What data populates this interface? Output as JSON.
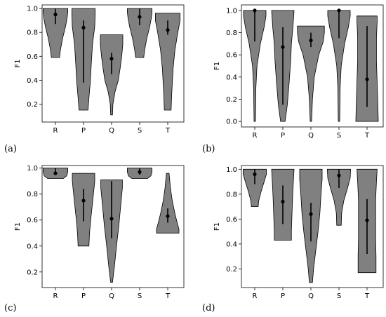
{
  "chart_data": [
    {
      "type": "violin",
      "panel_label": "(a)",
      "ylabel": "F1",
      "categories": [
        "R",
        "P",
        "Q",
        "S",
        "T"
      ],
      "ylim": [
        0.05,
        1.03
      ],
      "yticks": [
        0.2,
        0.4,
        0.6,
        0.8,
        1.0
      ],
      "ytick_labels": [
        "0.2",
        "0.4",
        "0.6",
        "0.8",
        "1.0"
      ],
      "violins": [
        {
          "min": 0.59,
          "max": 1.0,
          "median": 0.95,
          "q1": 0.87,
          "q3": 1.0,
          "profile": [
            [
              0.59,
              0.18
            ],
            [
              0.65,
              0.22
            ],
            [
              0.75,
              0.32
            ],
            [
              0.85,
              0.45
            ],
            [
              0.92,
              0.52
            ],
            [
              0.97,
              0.55
            ],
            [
              1.0,
              0.55
            ]
          ]
        },
        {
          "min": 0.15,
          "max": 1.0,
          "median": 0.84,
          "q1": 0.38,
          "q3": 0.9,
          "profile": [
            [
              0.15,
              0.2
            ],
            [
              0.25,
              0.24
            ],
            [
              0.38,
              0.3
            ],
            [
              0.55,
              0.35
            ],
            [
              0.7,
              0.4
            ],
            [
              0.85,
              0.5
            ],
            [
              0.95,
              0.52
            ],
            [
              1.0,
              0.52
            ]
          ]
        },
        {
          "min": 0.11,
          "max": 0.78,
          "median": 0.58,
          "q1": 0.45,
          "q3": 0.63,
          "profile": [
            [
              0.11,
              0.04
            ],
            [
              0.2,
              0.06
            ],
            [
              0.3,
              0.15
            ],
            [
              0.4,
              0.3
            ],
            [
              0.5,
              0.38
            ],
            [
              0.6,
              0.45
            ],
            [
              0.7,
              0.5
            ],
            [
              0.78,
              0.5
            ]
          ]
        },
        {
          "min": 0.59,
          "max": 1.0,
          "median": 0.93,
          "q1": 0.86,
          "q3": 1.0,
          "profile": [
            [
              0.59,
              0.18
            ],
            [
              0.65,
              0.22
            ],
            [
              0.75,
              0.32
            ],
            [
              0.85,
              0.45
            ],
            [
              0.92,
              0.52
            ],
            [
              0.97,
              0.55
            ],
            [
              1.0,
              0.55
            ]
          ]
        },
        {
          "min": 0.15,
          "max": 0.96,
          "median": 0.82,
          "q1": 0.78,
          "q3": 0.9,
          "profile": [
            [
              0.15,
              0.15
            ],
            [
              0.3,
              0.18
            ],
            [
              0.5,
              0.24
            ],
            [
              0.65,
              0.32
            ],
            [
              0.8,
              0.45
            ],
            [
              0.9,
              0.55
            ],
            [
              0.96,
              0.55
            ]
          ]
        }
      ]
    },
    {
      "type": "violin",
      "panel_label": "(b)",
      "ylabel": "F1",
      "categories": [
        "R",
        "P",
        "Q",
        "S",
        "T"
      ],
      "ylim": [
        -0.05,
        1.05
      ],
      "yticks": [
        0.0,
        0.2,
        0.4,
        0.6,
        0.8,
        1.0
      ],
      "ytick_labels": [
        "0.0",
        "0.2",
        "0.4",
        "0.6",
        "0.8",
        "1.0"
      ],
      "violins": [
        {
          "min": 0.0,
          "max": 1.0,
          "median": 1.0,
          "q1": 0.72,
          "q3": 1.0,
          "profile": [
            [
              0.0,
              0.03
            ],
            [
              0.3,
              0.05
            ],
            [
              0.5,
              0.1
            ],
            [
              0.7,
              0.25
            ],
            [
              0.85,
              0.42
            ],
            [
              0.95,
              0.5
            ],
            [
              1.0,
              0.5
            ]
          ]
        },
        {
          "min": 0.0,
          "max": 1.0,
          "median": 0.67,
          "q1": 0.15,
          "q3": 0.85,
          "profile": [
            [
              0.0,
              0.1
            ],
            [
              0.15,
              0.2
            ],
            [
              0.35,
              0.28
            ],
            [
              0.55,
              0.35
            ],
            [
              0.7,
              0.38
            ],
            [
              0.85,
              0.45
            ],
            [
              1.0,
              0.5
            ]
          ]
        },
        {
          "min": 0.0,
          "max": 0.86,
          "median": 0.73,
          "q1": 0.67,
          "q3": 0.8,
          "profile": [
            [
              0.0,
              0.03
            ],
            [
              0.2,
              0.07
            ],
            [
              0.4,
              0.15
            ],
            [
              0.6,
              0.35
            ],
            [
              0.72,
              0.55
            ],
            [
              0.8,
              0.6
            ],
            [
              0.86,
              0.6
            ]
          ]
        },
        {
          "min": 0.0,
          "max": 1.0,
          "median": 1.0,
          "q1": 0.75,
          "q3": 1.0,
          "profile": [
            [
              0.0,
              0.03
            ],
            [
              0.3,
              0.05
            ],
            [
              0.5,
              0.1
            ],
            [
              0.7,
              0.25
            ],
            [
              0.85,
              0.42
            ],
            [
              0.95,
              0.5
            ],
            [
              1.0,
              0.5
            ]
          ]
        },
        {
          "min": 0.0,
          "max": 0.95,
          "median": 0.38,
          "q1": 0.13,
          "q3": 0.86,
          "profile": [
            [
              0.0,
              0.5
            ],
            [
              0.15,
              0.48
            ],
            [
              0.35,
              0.45
            ],
            [
              0.55,
              0.42
            ],
            [
              0.75,
              0.42
            ],
            [
              0.9,
              0.45
            ],
            [
              0.95,
              0.45
            ]
          ]
        }
      ]
    },
    {
      "type": "violin",
      "panel_label": "(c)",
      "ylabel": "F1",
      "categories": [
        "R",
        "P",
        "Q",
        "S",
        "T"
      ],
      "ylim": [
        0.08,
        1.02
      ],
      "yticks": [
        0.2,
        0.4,
        0.6,
        0.8,
        1.0
      ],
      "ytick_labels": [
        "0.2",
        "0.4",
        "0.6",
        "0.8",
        "1.0"
      ],
      "violins": [
        {
          "min": 0.92,
          "max": 1.0,
          "median": 0.96,
          "q1": 0.95,
          "q3": 1.0,
          "profile": [
            [
              0.92,
              0.35
            ],
            [
              0.94,
              0.5
            ],
            [
              0.97,
              0.55
            ],
            [
              1.0,
              0.55
            ]
          ]
        },
        {
          "min": 0.4,
          "max": 0.96,
          "median": 0.75,
          "q1": 0.59,
          "q3": 0.84,
          "profile": [
            [
              0.4,
              0.24
            ],
            [
              0.5,
              0.27
            ],
            [
              0.6,
              0.32
            ],
            [
              0.7,
              0.38
            ],
            [
              0.8,
              0.44
            ],
            [
              0.9,
              0.5
            ],
            [
              0.96,
              0.5
            ]
          ]
        },
        {
          "min": 0.12,
          "max": 0.91,
          "median": 0.61,
          "q1": 0.46,
          "q3": 0.9,
          "profile": [
            [
              0.12,
              0.04
            ],
            [
              0.25,
              0.13
            ],
            [
              0.4,
              0.22
            ],
            [
              0.55,
              0.32
            ],
            [
              0.7,
              0.4
            ],
            [
              0.85,
              0.48
            ],
            [
              0.91,
              0.48
            ]
          ]
        },
        {
          "min": 0.92,
          "max": 1.0,
          "median": 0.97,
          "q1": 0.95,
          "q3": 1.0,
          "profile": [
            [
              0.92,
              0.35
            ],
            [
              0.94,
              0.5
            ],
            [
              0.97,
              0.55
            ],
            [
              1.0,
              0.55
            ]
          ]
        },
        {
          "min": 0.5,
          "max": 0.96,
          "median": 0.63,
          "q1": 0.58,
          "q3": 0.69,
          "profile": [
            [
              0.5,
              0.5
            ],
            [
              0.53,
              0.5
            ],
            [
              0.58,
              0.42
            ],
            [
              0.65,
              0.32
            ],
            [
              0.75,
              0.2
            ],
            [
              0.85,
              0.12
            ],
            [
              0.96,
              0.06
            ]
          ]
        }
      ]
    },
    {
      "type": "violin",
      "panel_label": "(d)",
      "ylabel": "F1",
      "categories": [
        "R",
        "P",
        "Q",
        "S",
        "T"
      ],
      "ylim": [
        0.05,
        1.03
      ],
      "yticks": [
        0.2,
        0.4,
        0.6,
        0.8,
        1.0
      ],
      "ytick_labels": [
        "0.2",
        "0.4",
        "0.6",
        "0.8",
        "1.0"
      ],
      "violins": [
        {
          "min": 0.7,
          "max": 1.0,
          "median": 0.96,
          "q1": 0.88,
          "q3": 1.0,
          "profile": [
            [
              0.7,
              0.15
            ],
            [
              0.75,
              0.18
            ],
            [
              0.82,
              0.28
            ],
            [
              0.9,
              0.42
            ],
            [
              0.96,
              0.52
            ],
            [
              1.0,
              0.52
            ]
          ]
        },
        {
          "min": 0.43,
          "max": 1.0,
          "median": 0.74,
          "q1": 0.56,
          "q3": 0.87,
          "profile": [
            [
              0.43,
              0.38
            ],
            [
              0.5,
              0.38
            ],
            [
              0.6,
              0.4
            ],
            [
              0.7,
              0.42
            ],
            [
              0.8,
              0.44
            ],
            [
              0.9,
              0.47
            ],
            [
              1.0,
              0.5
            ]
          ]
        },
        {
          "min": 0.09,
          "max": 1.0,
          "median": 0.64,
          "q1": 0.42,
          "q3": 0.73,
          "profile": [
            [
              0.09,
              0.07
            ],
            [
              0.2,
              0.12
            ],
            [
              0.35,
              0.22
            ],
            [
              0.5,
              0.32
            ],
            [
              0.65,
              0.4
            ],
            [
              0.8,
              0.45
            ],
            [
              0.92,
              0.5
            ],
            [
              1.0,
              0.5
            ]
          ]
        },
        {
          "min": 0.55,
          "max": 1.0,
          "median": 0.95,
          "q1": 0.85,
          "q3": 1.0,
          "profile": [
            [
              0.55,
              0.1
            ],
            [
              0.65,
              0.12
            ],
            [
              0.75,
              0.22
            ],
            [
              0.85,
              0.38
            ],
            [
              0.93,
              0.5
            ],
            [
              1.0,
              0.52
            ]
          ]
        },
        {
          "min": 0.17,
          "max": 1.0,
          "median": 0.59,
          "q1": 0.32,
          "q3": 0.76,
          "profile": [
            [
              0.17,
              0.4
            ],
            [
              0.3,
              0.4
            ],
            [
              0.45,
              0.38
            ],
            [
              0.6,
              0.38
            ],
            [
              0.75,
              0.38
            ],
            [
              0.9,
              0.42
            ],
            [
              1.0,
              0.45
            ]
          ]
        }
      ]
    }
  ]
}
